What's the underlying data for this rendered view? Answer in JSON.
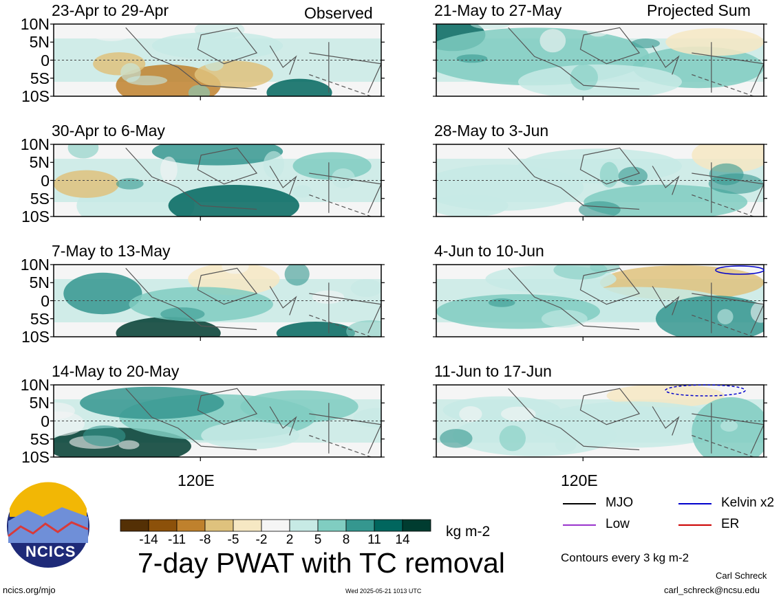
{
  "chart_data": {
    "type": "heatmap",
    "title": "7-day PWAT with TC removal",
    "units": "kg m-2",
    "contour_note": "Contours every 3 kg m-2",
    "columns": [
      {
        "label": "Observed",
        "panels": [
          "23-Apr to 29-Apr",
          "30-Apr to 6-May",
          "7-May to 13-May",
          "14-May to 20-May"
        ]
      },
      {
        "label": "Projected Sum",
        "panels": [
          "21-May to 27-May",
          "28-May to 3-Jun",
          "4-Jun to 10-Jun",
          "11-Jun to 17-Jun"
        ]
      }
    ],
    "y_ticks": [
      "10N",
      "5N",
      "0",
      "5S",
      "10S"
    ],
    "x_tick": "120E",
    "colorbar": {
      "tick_labels": [
        "-14",
        "-11",
        "-8",
        "-5",
        "-2",
        "2",
        "5",
        "8",
        "11",
        "14"
      ],
      "colors": [
        "#543005",
        "#8c510a",
        "#bf812d",
        "#dfc27d",
        "#f6e8c3",
        "#f5f5f5",
        "#c7eae5",
        "#80cdc1",
        "#35978f",
        "#01665e",
        "#003c30"
      ]
    },
    "contour_legend": [
      {
        "name": "MJO",
        "color": "#000000"
      },
      {
        "name": "Kelvin x2",
        "color": "#0000cc"
      },
      {
        "name": "Low",
        "color": "#9933cc"
      },
      {
        "name": "ER",
        "color": "#cc0000"
      }
    ]
  },
  "logo": {
    "text": "NCICS"
  },
  "footer": {
    "left": "ncics.org/mjo",
    "center": "Wed 2025-05-21 1013 UTC",
    "author": "Carl Schreck",
    "email": "carl_schreck@ncsu.edu"
  }
}
